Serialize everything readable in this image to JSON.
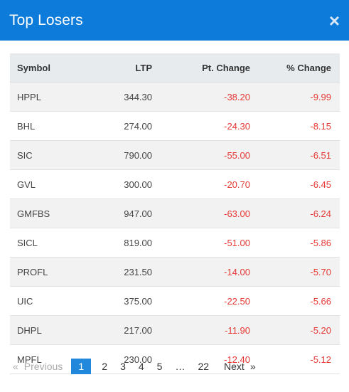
{
  "modal": {
    "title": "Top Losers",
    "close_symbol": "×"
  },
  "table": {
    "headers": {
      "symbol": "Symbol",
      "ltp": "LTP",
      "pt_change": "Pt. Change",
      "pct_change": "% Change"
    },
    "rows": [
      {
        "symbol": "HPPL",
        "ltp": "344.30",
        "pt_change": "-38.20",
        "pct_change": "-9.99"
      },
      {
        "symbol": "BHL",
        "ltp": "274.00",
        "pt_change": "-24.30",
        "pct_change": "-8.15"
      },
      {
        "symbol": "SIC",
        "ltp": "790.00",
        "pt_change": "-55.00",
        "pct_change": "-6.51"
      },
      {
        "symbol": "GVL",
        "ltp": "300.00",
        "pt_change": "-20.70",
        "pct_change": "-6.45"
      },
      {
        "symbol": "GMFBS",
        "ltp": "947.00",
        "pt_change": "-63.00",
        "pct_change": "-6.24"
      },
      {
        "symbol": "SICL",
        "ltp": "819.00",
        "pt_change": "-51.00",
        "pct_change": "-5.86"
      },
      {
        "symbol": "PROFL",
        "ltp": "231.50",
        "pt_change": "-14.00",
        "pct_change": "-5.70"
      },
      {
        "symbol": "UIC",
        "ltp": "375.00",
        "pt_change": "-22.50",
        "pct_change": "-5.66"
      },
      {
        "symbol": "DHPL",
        "ltp": "217.00",
        "pt_change": "-11.90",
        "pct_change": "-5.20"
      },
      {
        "symbol": "MPFL",
        "ltp": "230.00",
        "pt_change": "-12.40",
        "pct_change": "-5.12"
      }
    ]
  },
  "pagination": {
    "first_symbol": "«",
    "previous": "Previous",
    "pages": [
      "1",
      "2",
      "3",
      "4",
      "5"
    ],
    "active_page": "1",
    "ellipsis": "…",
    "last_page": "22",
    "next": "Next",
    "last_symbol": "»"
  },
  "colors": {
    "header": "#0c7bd9",
    "negative": "#e53935",
    "active_page": "#2188db"
  }
}
